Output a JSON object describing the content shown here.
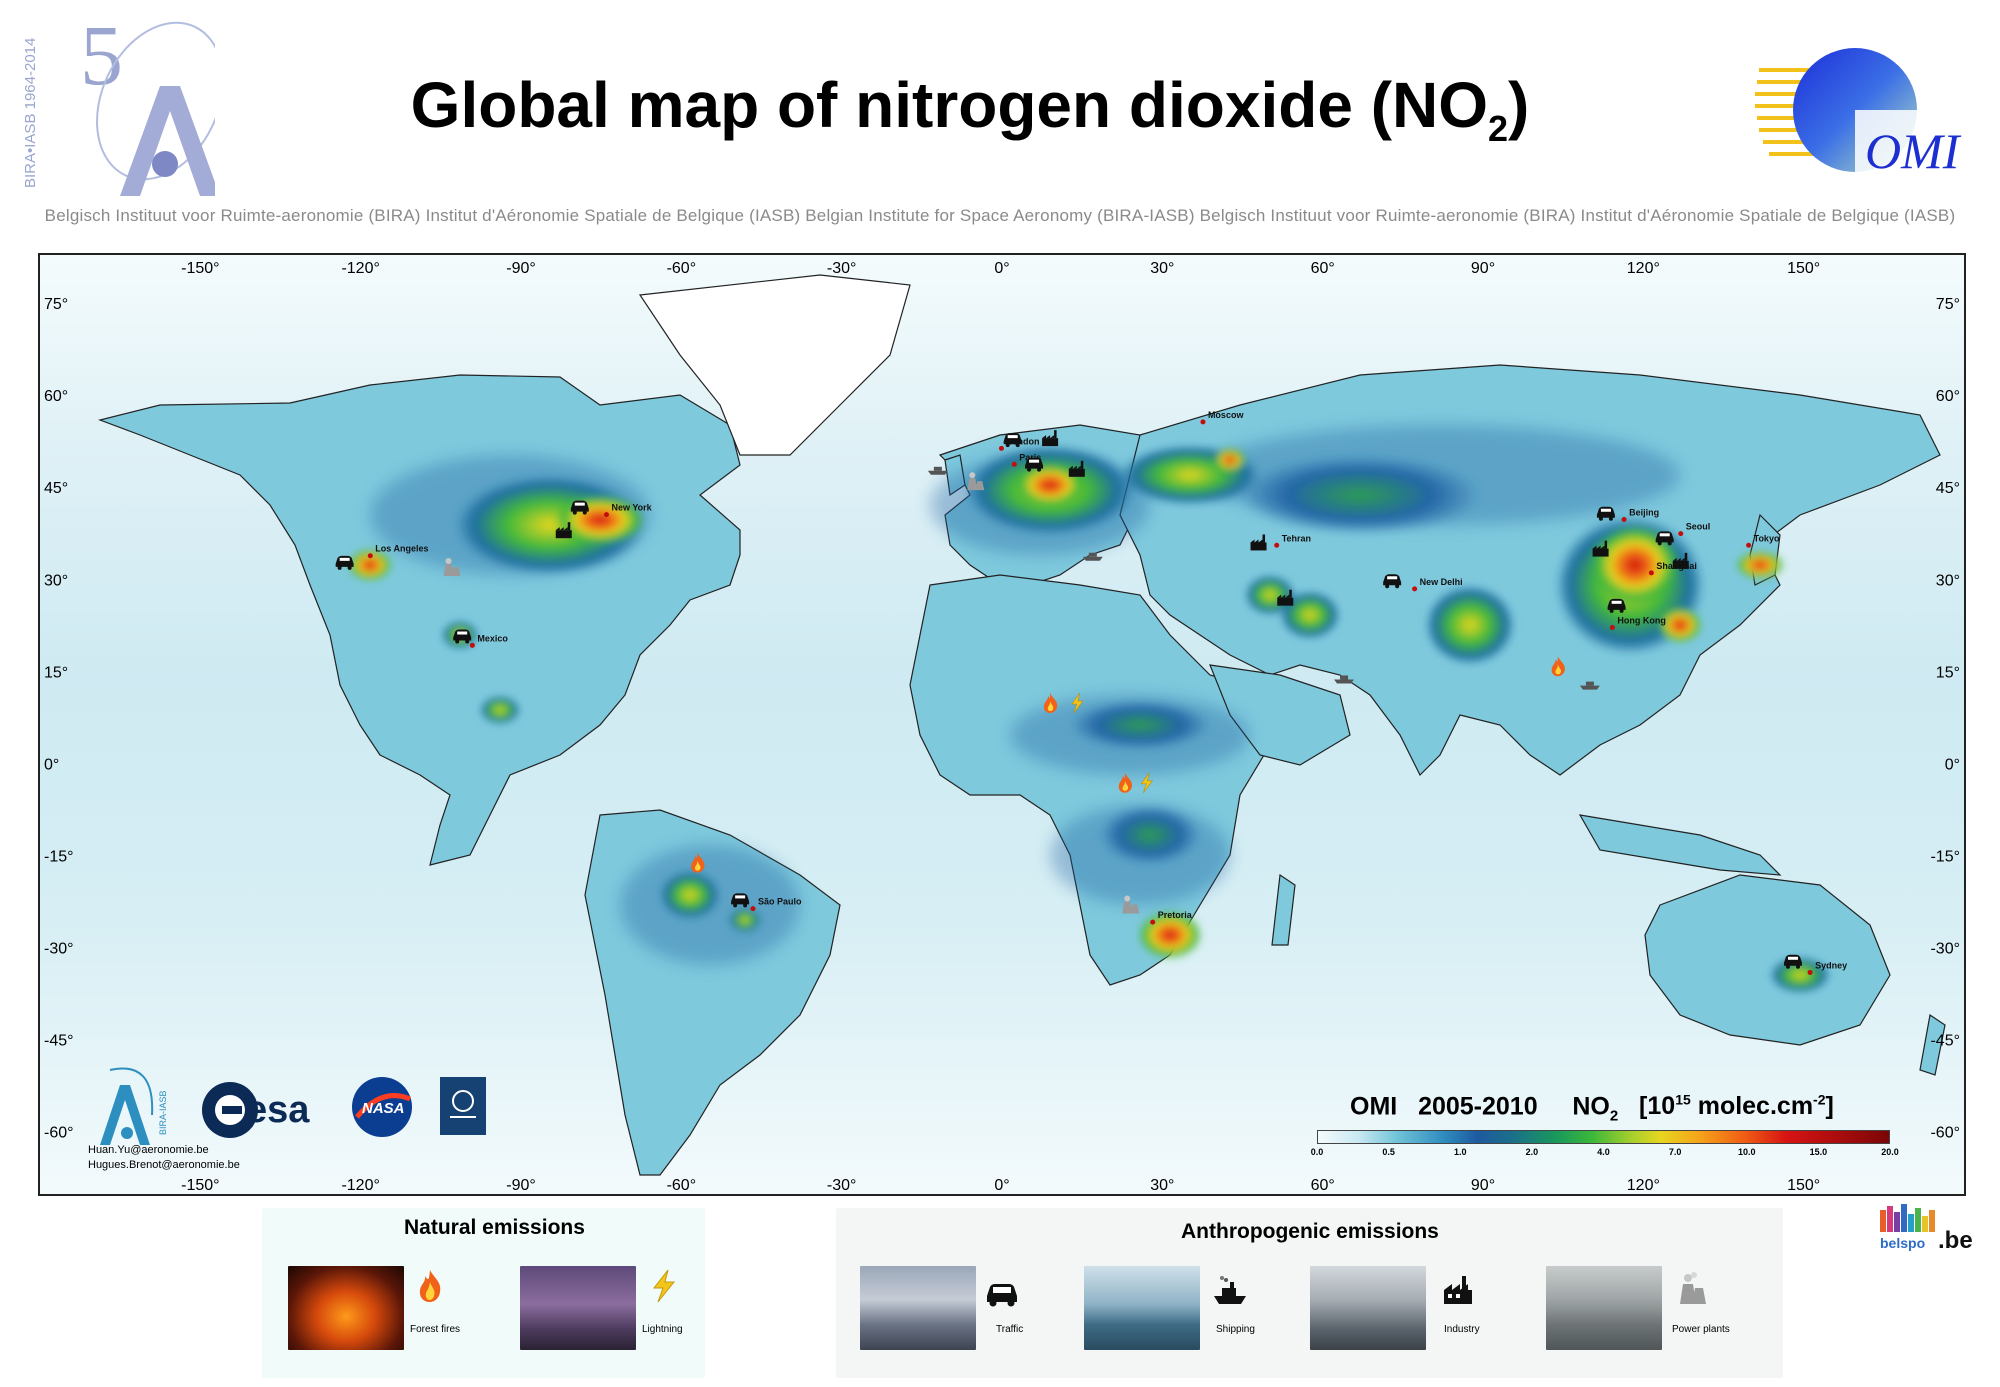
{
  "header": {
    "title": "Global map of nitrogen dioxide (NO",
    "title_sub": "2",
    "title_end": ")",
    "anniversary_number": "5",
    "anniversary_text": "BIRA•IASB 1964-2014",
    "omi_logo_text": "OMI",
    "institute_line": "Belgisch Instituut voor Ruimte-aeronomie (BIRA) Institut d'Aéronomie Spatiale de Belgique (IASB) Belgian Institute for Space Aeronomy (BIRA-IASB) Belgisch Instituut voor Ruimte-aeronomie (BIRA) Institut d'Aéronomie Spatiale de Belgique (IASB)"
  },
  "map": {
    "lon_ticks": [
      -150,
      -120,
      -90,
      -60,
      -30,
      0,
      30,
      60,
      90,
      120,
      150
    ],
    "lat_ticks": [
      75,
      60,
      45,
      30,
      15,
      0,
      -15,
      -30,
      -45,
      -60
    ],
    "extent": {
      "lon": [
        -180,
        180
      ],
      "lat": [
        -70,
        83
      ]
    },
    "cities": [
      {
        "name": "Los Angeles",
        "lon": -118.2,
        "lat": 34.0
      },
      {
        "name": "New York",
        "lon": -74.0,
        "lat": 40.7
      },
      {
        "name": "Mexico",
        "lon": -99.1,
        "lat": 19.4
      },
      {
        "name": "São Paulo",
        "lon": -46.6,
        "lat": -23.5
      },
      {
        "name": "London",
        "lon": -0.1,
        "lat": 51.5
      },
      {
        "name": "Paris",
        "lon": 2.3,
        "lat": 48.9
      },
      {
        "name": "Moscow",
        "lon": 37.6,
        "lat": 55.8
      },
      {
        "name": "Tehran",
        "lon": 51.4,
        "lat": 35.7
      },
      {
        "name": "New Delhi",
        "lon": 77.2,
        "lat": 28.6
      },
      {
        "name": "Beijing",
        "lon": 116.4,
        "lat": 39.9
      },
      {
        "name": "Seoul",
        "lon": 127.0,
        "lat": 37.6
      },
      {
        "name": "Tokyo",
        "lon": 139.7,
        "lat": 35.7
      },
      {
        "name": "Shanghai",
        "lon": 121.5,
        "lat": 31.2
      },
      {
        "name": "Hong Kong",
        "lon": 114.2,
        "lat": 22.3
      },
      {
        "name": "Pretoria",
        "lon": 28.2,
        "lat": -25.7
      },
      {
        "name": "Sydney",
        "lon": 151.2,
        "lat": -33.9
      }
    ],
    "markers": [
      {
        "type": "traffic",
        "lon": -123,
        "lat": 33
      },
      {
        "type": "traffic",
        "lon": -79,
        "lat": 42
      },
      {
        "type": "traffic",
        "lon": -101,
        "lat": 21
      },
      {
        "type": "traffic",
        "lon": -49,
        "lat": -22
      },
      {
        "type": "traffic",
        "lon": 2,
        "lat": 53
      },
      {
        "type": "traffic",
        "lon": 6,
        "lat": 49
      },
      {
        "type": "traffic",
        "lon": 73,
        "lat": 30
      },
      {
        "type": "traffic",
        "lon": 113,
        "lat": 41
      },
      {
        "type": "traffic",
        "lon": 115,
        "lat": 26
      },
      {
        "type": "traffic",
        "lon": 124,
        "lat": 37
      },
      {
        "type": "traffic",
        "lon": 148,
        "lat": -32
      },
      {
        "type": "industry",
        "lon": -82,
        "lat": 38
      },
      {
        "type": "industry",
        "lon": 9,
        "lat": 53
      },
      {
        "type": "industry",
        "lon": 14,
        "lat": 48
      },
      {
        "type": "industry",
        "lon": 48,
        "lat": 36
      },
      {
        "type": "industry",
        "lon": 53,
        "lat": 27
      },
      {
        "type": "industry",
        "lon": 112,
        "lat": 35
      },
      {
        "type": "industry",
        "lon": 127,
        "lat": 33
      },
      {
        "type": "power",
        "lon": -103,
        "lat": 32
      },
      {
        "type": "power",
        "lon": -5,
        "lat": 46
      },
      {
        "type": "power",
        "lon": 24,
        "lat": -23
      },
      {
        "type": "shipping",
        "lon": -12,
        "lat": 48
      },
      {
        "type": "shipping",
        "lon": 17,
        "lat": 34
      },
      {
        "type": "shipping",
        "lon": 64,
        "lat": 14
      },
      {
        "type": "shipping",
        "lon": 110,
        "lat": 13
      },
      {
        "type": "fire",
        "lon": 9,
        "lat": 10
      },
      {
        "type": "fire",
        "lon": 23,
        "lat": -3
      },
      {
        "type": "fire",
        "lon": -57,
        "lat": -16
      },
      {
        "type": "fire",
        "lon": 104,
        "lat": 16
      },
      {
        "type": "lightning",
        "lon": 14,
        "lat": 10
      },
      {
        "type": "lightning",
        "lon": 27,
        "lat": -3
      }
    ],
    "logos": {
      "bira_text": "BIRA-IASB",
      "esa_text": "esa",
      "nasa_text": "NASA"
    },
    "contacts": [
      "Huan.Yu@aeronomie.be",
      "Hugues.Brenot@aeronomie.be"
    ]
  },
  "colorbar": {
    "instrument": "OMI",
    "period": "2005-2010",
    "species": "NO",
    "species_sub": "2",
    "unit_open": "[10",
    "unit_exp": "15",
    "unit_mid": " molec.cm",
    "unit_exp2": "-2",
    "unit_close": "]",
    "ticks": [
      "0.0",
      "0.5",
      "1.0",
      "2.0",
      "4.0",
      "7.0",
      "10.0",
      "15.0",
      "20.0"
    ],
    "tick_values": [
      0.0,
      0.5,
      1.0,
      2.0,
      4.0,
      7.0,
      10.0,
      15.0,
      20.0
    ]
  },
  "legend": {
    "natural": {
      "title": "Natural emissions",
      "items": [
        {
          "label": "Forest fires",
          "icon": "fire-icon"
        },
        {
          "label": "Lightning",
          "icon": "lightning-icon"
        }
      ]
    },
    "anthropogenic": {
      "title": "Anthropogenic emissions",
      "items": [
        {
          "label": "Traffic",
          "icon": "car-icon"
        },
        {
          "label": "Shipping",
          "icon": "ship-icon"
        },
        {
          "label": "Industry",
          "icon": "factory-icon"
        },
        {
          "label": "Power plants",
          "icon": "power-plant-icon"
        }
      ]
    }
  },
  "footer": {
    "belspo_text": "belspo",
    "belspo_suffix": ".be"
  }
}
